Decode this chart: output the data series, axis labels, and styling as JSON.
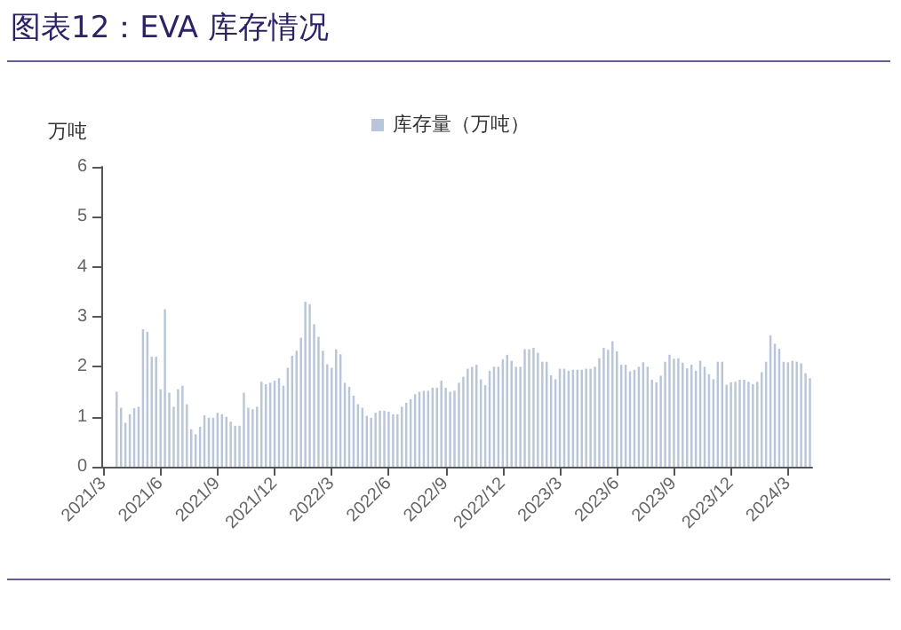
{
  "chart_data": {
    "type": "bar",
    "title": "图表12：EVA 库存情况",
    "ylabel": "万吨",
    "categories": [
      "2021/3",
      null,
      null,
      null,
      null,
      null,
      null,
      null,
      null,
      null,
      null,
      null,
      null,
      "2021/6",
      null,
      null,
      null,
      null,
      null,
      null,
      null,
      null,
      null,
      null,
      null,
      null,
      "2021/9",
      null,
      null,
      null,
      null,
      null,
      null,
      null,
      null,
      null,
      null,
      null,
      null,
      "2021/12",
      null,
      null,
      null,
      null,
      null,
      null,
      null,
      null,
      null,
      null,
      null,
      null,
      "2022/3",
      null,
      null,
      null,
      null,
      null,
      null,
      null,
      null,
      null,
      null,
      null,
      null,
      "2022/6",
      null,
      null,
      null,
      null,
      null,
      null,
      null,
      null,
      null,
      null,
      null,
      null,
      "2022/9",
      null,
      null,
      null,
      null,
      null,
      null,
      null,
      null,
      null,
      null,
      null,
      null,
      "2022/12",
      null,
      null,
      null,
      null,
      null,
      null,
      null,
      null,
      null,
      null,
      null,
      null,
      "2023/3",
      null,
      null,
      null,
      null,
      null,
      null,
      null,
      null,
      null,
      null,
      null,
      null,
      "2023/6",
      null,
      null,
      null,
      null,
      null,
      null,
      null,
      null,
      null,
      null,
      null,
      null,
      "2023/9",
      null,
      null,
      null,
      null,
      null,
      null,
      null,
      null,
      null,
      null,
      null,
      null,
      "2023/12",
      null,
      null,
      null,
      null,
      null,
      null,
      null,
      null,
      null,
      null,
      null,
      null,
      "2024/3",
      null,
      null,
      null,
      null,
      null
    ],
    "series": [
      {
        "name": "库存量（万吨）",
        "color": "#b8c6dc",
        "values": [
          null,
          null,
          null,
          1.5,
          1.18,
          0.88,
          1.05,
          1.17,
          1.2,
          2.75,
          2.7,
          2.2,
          2.2,
          1.55,
          3.15,
          1.48,
          1.2,
          1.55,
          1.62,
          1.25,
          0.75,
          0.65,
          0.8,
          1.03,
          0.98,
          0.98,
          1.08,
          1.05,
          1.0,
          0.9,
          0.82,
          0.82,
          1.48,
          1.18,
          1.15,
          1.2,
          1.7,
          1.65,
          1.68,
          1.72,
          1.77,
          1.62,
          1.98,
          2.22,
          2.32,
          2.58,
          3.3,
          3.25,
          2.85,
          2.6,
          2.32,
          2.05,
          1.98,
          2.35,
          2.25,
          1.68,
          1.6,
          1.42,
          1.25,
          1.18,
          1.02,
          0.98,
          1.08,
          1.12,
          1.12,
          1.1,
          1.05,
          1.05,
          1.2,
          1.28,
          1.35,
          1.45,
          1.5,
          1.52,
          1.52,
          1.58,
          1.58,
          1.72,
          1.58,
          1.5,
          1.52,
          1.68,
          1.8,
          1.96,
          2.0,
          2.04,
          1.75,
          1.63,
          1.92,
          2.0,
          2.0,
          2.15,
          2.24,
          2.12,
          2.0,
          2.0,
          2.35,
          2.35,
          2.38,
          2.28,
          2.1,
          2.1,
          1.83,
          1.75,
          1.96,
          1.96,
          1.92,
          1.94,
          1.94,
          1.94,
          1.96,
          1.96,
          2.0,
          2.17,
          2.38,
          2.34,
          2.51,
          2.31,
          2.04,
          2.04,
          1.91,
          1.94,
          2.0,
          2.09,
          2.0,
          1.74,
          1.69,
          1.82,
          2.1,
          2.24,
          2.16,
          2.17,
          2.08,
          1.97,
          2.04,
          1.92,
          2.12,
          2.0,
          1.85,
          1.75,
          2.1,
          2.1,
          1.64,
          1.69,
          1.7,
          1.74,
          1.74,
          1.7,
          1.65,
          1.7,
          1.89,
          2.1,
          2.63,
          2.46,
          2.36,
          2.1,
          2.09,
          2.12,
          2.1,
          2.07,
          1.87,
          1.77
        ]
      }
    ],
    "ylim": [
      0,
      6
    ],
    "yticks": [
      0,
      1,
      2,
      3,
      4,
      5,
      6
    ],
    "grid": false,
    "legend": "top"
  }
}
